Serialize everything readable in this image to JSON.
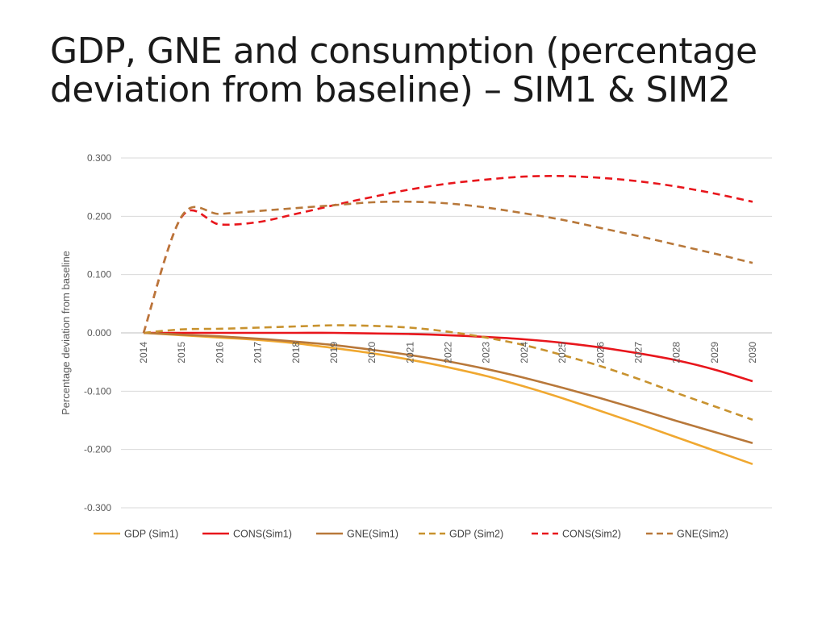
{
  "title": {
    "line1": "GDP, GNE and consumption (percentage",
    "line2": "deviation from baseline) – SIM1 & SIM2"
  },
  "chart_data": {
    "type": "line",
    "title": "GDP, GNE and consumption (percentage deviation from baseline) – SIM1 & SIM2",
    "ylabel": "Percentage deviation from baseline",
    "xlabel": "",
    "ylim": [
      -0.3,
      0.3
    ],
    "yticks": [
      "0.300",
      "0.200",
      "0.100",
      "0.000",
      "-0.100",
      "-0.200",
      "-0.300"
    ],
    "ytick_values": [
      0.3,
      0.2,
      0.1,
      0.0,
      -0.1,
      -0.2,
      -0.3
    ],
    "categories": [
      "2014",
      "2015",
      "2016",
      "2017",
      "2018",
      "2019",
      "2020",
      "2021",
      "2022",
      "2023",
      "2024",
      "2025",
      "2026",
      "2027",
      "2028",
      "2029",
      "2030"
    ],
    "legend_position": "bottom",
    "grid": true,
    "series": [
      {
        "name": "GDP (Sim1)",
        "color": "#F0A830",
        "dash": "solid",
        "values": [
          0.0,
          -0.004,
          -0.008,
          -0.012,
          -0.018,
          -0.026,
          -0.035,
          -0.046,
          -0.059,
          -0.074,
          -0.092,
          -0.112,
          -0.134,
          -0.156,
          -0.179,
          -0.202,
          -0.225
        ]
      },
      {
        "name": "CONS(Sim1)",
        "color": "#E8161C",
        "dash": "solid",
        "values": [
          0.0,
          0.0,
          0.0,
          0.0,
          0.0,
          0.0,
          -0.001,
          -0.002,
          -0.004,
          -0.007,
          -0.011,
          -0.017,
          -0.025,
          -0.035,
          -0.047,
          -0.063,
          -0.083
        ]
      },
      {
        "name": "GNE(Sim1)",
        "color": "#B8783A",
        "dash": "solid",
        "values": [
          0.0,
          -0.003,
          -0.006,
          -0.01,
          -0.015,
          -0.021,
          -0.029,
          -0.038,
          -0.049,
          -0.062,
          -0.077,
          -0.094,
          -0.112,
          -0.131,
          -0.151,
          -0.17,
          -0.189
        ]
      },
      {
        "name": "GDP (Sim2)",
        "color": "#C8922E",
        "dash": "dashed",
        "values": [
          0.0,
          0.006,
          0.007,
          0.009,
          0.011,
          0.013,
          0.012,
          0.009,
          0.002,
          -0.008,
          -0.021,
          -0.038,
          -0.057,
          -0.079,
          -0.103,
          -0.126,
          -0.149
        ]
      },
      {
        "name": "CONS(Sim2)",
        "color": "#E8161C",
        "dash": "dashed",
        "values": [
          0.0,
          0.199,
          0.186,
          0.19,
          0.204,
          0.219,
          0.233,
          0.246,
          0.256,
          0.263,
          0.268,
          0.269,
          0.266,
          0.26,
          0.251,
          0.239,
          0.225
        ]
      },
      {
        "name": "GNE(Sim2)",
        "color": "#B8783A",
        "dash": "dashed",
        "values": [
          0.0,
          0.2,
          0.204,
          0.209,
          0.214,
          0.219,
          0.224,
          0.225,
          0.222,
          0.215,
          0.205,
          0.194,
          0.18,
          0.166,
          0.151,
          0.136,
          0.12
        ]
      }
    ]
  }
}
